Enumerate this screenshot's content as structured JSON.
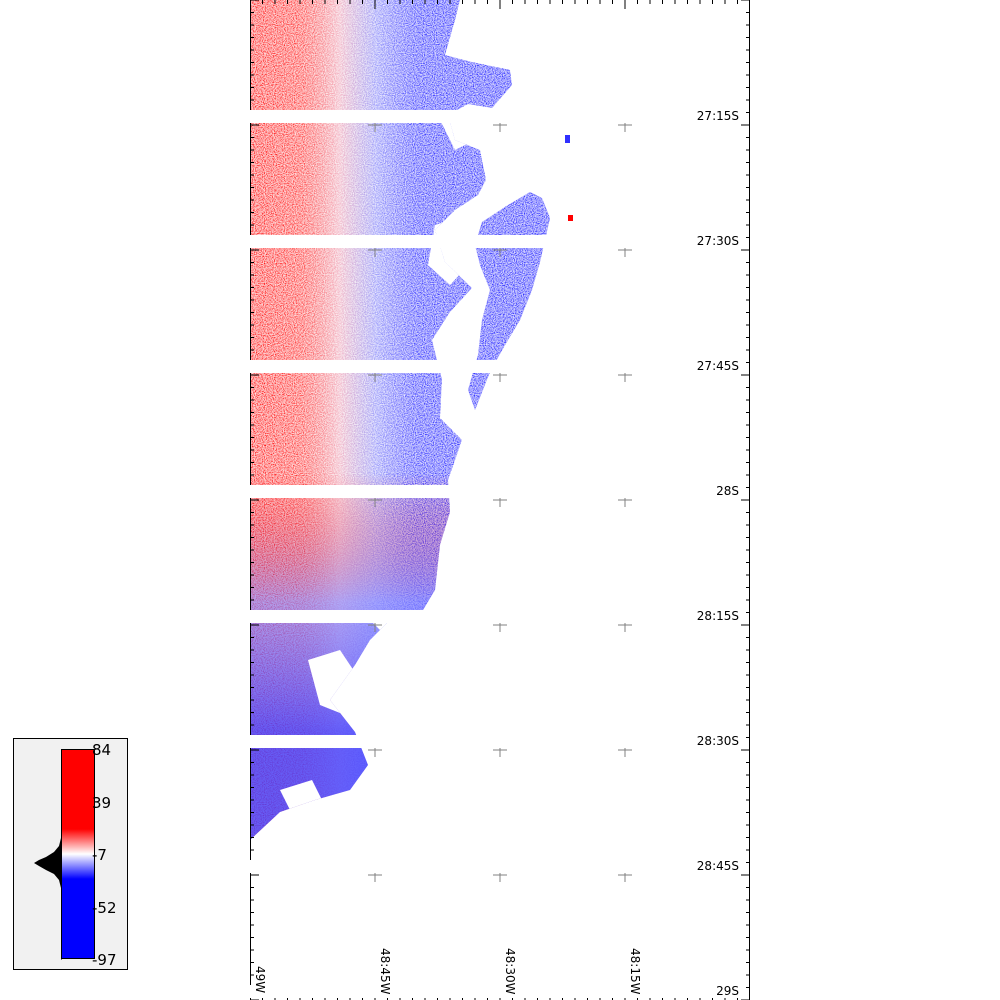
{
  "map": {
    "lat_labels": [
      "27:15S",
      "27:30S",
      "27:45S",
      "28S",
      "28:15S",
      "28:30S",
      "28:45S",
      "29S"
    ],
    "lon_labels": [
      "49W",
      "48:45W",
      "48:30W",
      "48:15W"
    ]
  },
  "legend": {
    "ticks": [
      "84",
      "39",
      "-7",
      "-52",
      "-97"
    ],
    "colors": {
      "high": "#ff0000",
      "mid": "#ffffff",
      "low": "#0000ff"
    }
  },
  "colors": {
    "positive": "#ff0000",
    "neutral": "#ffffff",
    "negative": "#0000ff",
    "grid": "#808080"
  }
}
